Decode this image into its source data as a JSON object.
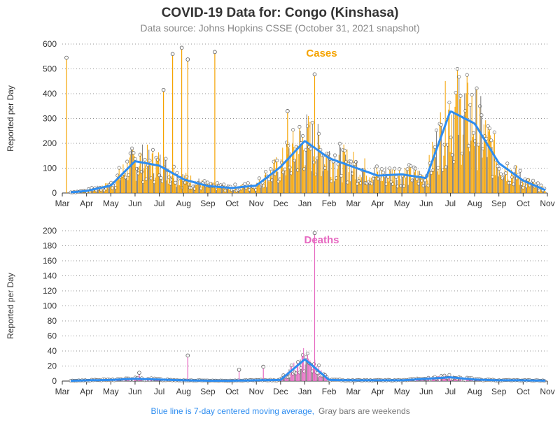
{
  "header": {
    "title": "COVID-19 Data for: Congo (Kinshasa)",
    "subtitle": "Data source: Johns Hopkins CSSE (October 31, 2021 snapshot)"
  },
  "footer": {
    "note_blue": "Blue line is 7-day centered moving average,",
    "note_gray": "Gray bars are weekends"
  },
  "colors": {
    "cases": "#f5a300",
    "deaths": "#e667c0",
    "moving_average": "#2e8df0",
    "weekend": "#777777",
    "grid": "#888888",
    "axis": "#333333",
    "title": "#333333",
    "subtitle": "#888888"
  },
  "chart_data": [
    {
      "type": "bar",
      "label": "Cases",
      "ylabel": "Reported per Day",
      "x_ticks": [
        "Mar",
        "Apr",
        "May",
        "Jun",
        "Jul",
        "Aug",
        "Sep",
        "Oct",
        "Nov",
        "Dec",
        "Jan",
        "Feb",
        "Mar",
        "Apr",
        "May",
        "Jun",
        "Jul",
        "Aug",
        "Sep",
        "Oct",
        "Nov"
      ],
      "y_ticks": [
        0,
        100,
        200,
        300,
        400,
        500,
        600
      ],
      "ylim": [
        0,
        600
      ],
      "grid": "horizontal dotted",
      "moving_average": {
        "name": "7-day centered moving average",
        "points": [
          [
            "Mar",
            0
          ],
          [
            "Apr",
            8
          ],
          [
            "May",
            30
          ],
          [
            "Jun",
            128
          ],
          [
            "Jul",
            110
          ],
          [
            "Aug",
            55
          ],
          [
            "Sep",
            28
          ],
          [
            "Oct",
            20
          ],
          [
            "Nov",
            30
          ],
          [
            "Dec",
            105
          ],
          [
            "Jan",
            210
          ],
          [
            "Feb",
            140
          ],
          [
            "Mar",
            105
          ],
          [
            "Apr",
            70
          ],
          [
            "May",
            75
          ],
          [
            "Jun",
            60
          ],
          [
            "Jul",
            330
          ],
          [
            "Aug",
            280
          ],
          [
            "Sep",
            120
          ],
          [
            "Oct",
            50
          ],
          [
            "Nov",
            8
          ]
        ]
      },
      "spikes": [
        [
          "Jul",
          415
        ],
        [
          "Dec",
          330
        ],
        [
          "Jan",
          478
        ],
        [
          "Mar",
          545
        ],
        [
          "Jul",
          560
        ],
        [
          "Jul",
          585
        ],
        [
          "Aug",
          538
        ],
        [
          "Sep",
          568
        ]
      ]
    },
    {
      "type": "bar",
      "label": "Deaths",
      "ylabel": "Reported per Day",
      "x_ticks": [
        "Mar",
        "Apr",
        "May",
        "Jun",
        "Jul",
        "Aug",
        "Sep",
        "Oct",
        "Nov",
        "Dec",
        "Jan",
        "Feb",
        "Mar",
        "Apr",
        "May",
        "Jun",
        "Jul",
        "Aug",
        "Sep",
        "Oct",
        "Nov"
      ],
      "y_ticks": [
        0,
        20,
        40,
        60,
        80,
        100,
        120,
        140,
        160,
        180,
        200
      ],
      "ylim": [
        0,
        200
      ],
      "grid": "horizontal dotted",
      "moving_average": {
        "name": "7-day centered moving average",
        "points": [
          [
            "Mar",
            0
          ],
          [
            "Apr",
            1
          ],
          [
            "May",
            1.5
          ],
          [
            "Jun",
            3
          ],
          [
            "Jul",
            2
          ],
          [
            "Aug",
            1
          ],
          [
            "Sep",
            0.5
          ],
          [
            "Oct",
            0.5
          ],
          [
            "Nov",
            1
          ],
          [
            "Dec",
            1.5
          ],
          [
            "Jan",
            29
          ],
          [
            "Feb",
            1.5
          ],
          [
            "Mar",
            1
          ],
          [
            "Apr",
            1
          ],
          [
            "May",
            1
          ],
          [
            "Jun",
            3
          ],
          [
            "Jul",
            5
          ],
          [
            "Aug",
            2
          ],
          [
            "Sep",
            1
          ],
          [
            "Oct",
            1
          ],
          [
            "Nov",
            0.5
          ]
        ]
      },
      "spikes": [
        [
          "Jun",
          11
        ],
        [
          "Nov",
          19
        ],
        [
          "Jan",
          197
        ],
        [
          "Aug",
          34
        ],
        [
          "Oct",
          15
        ]
      ]
    }
  ]
}
